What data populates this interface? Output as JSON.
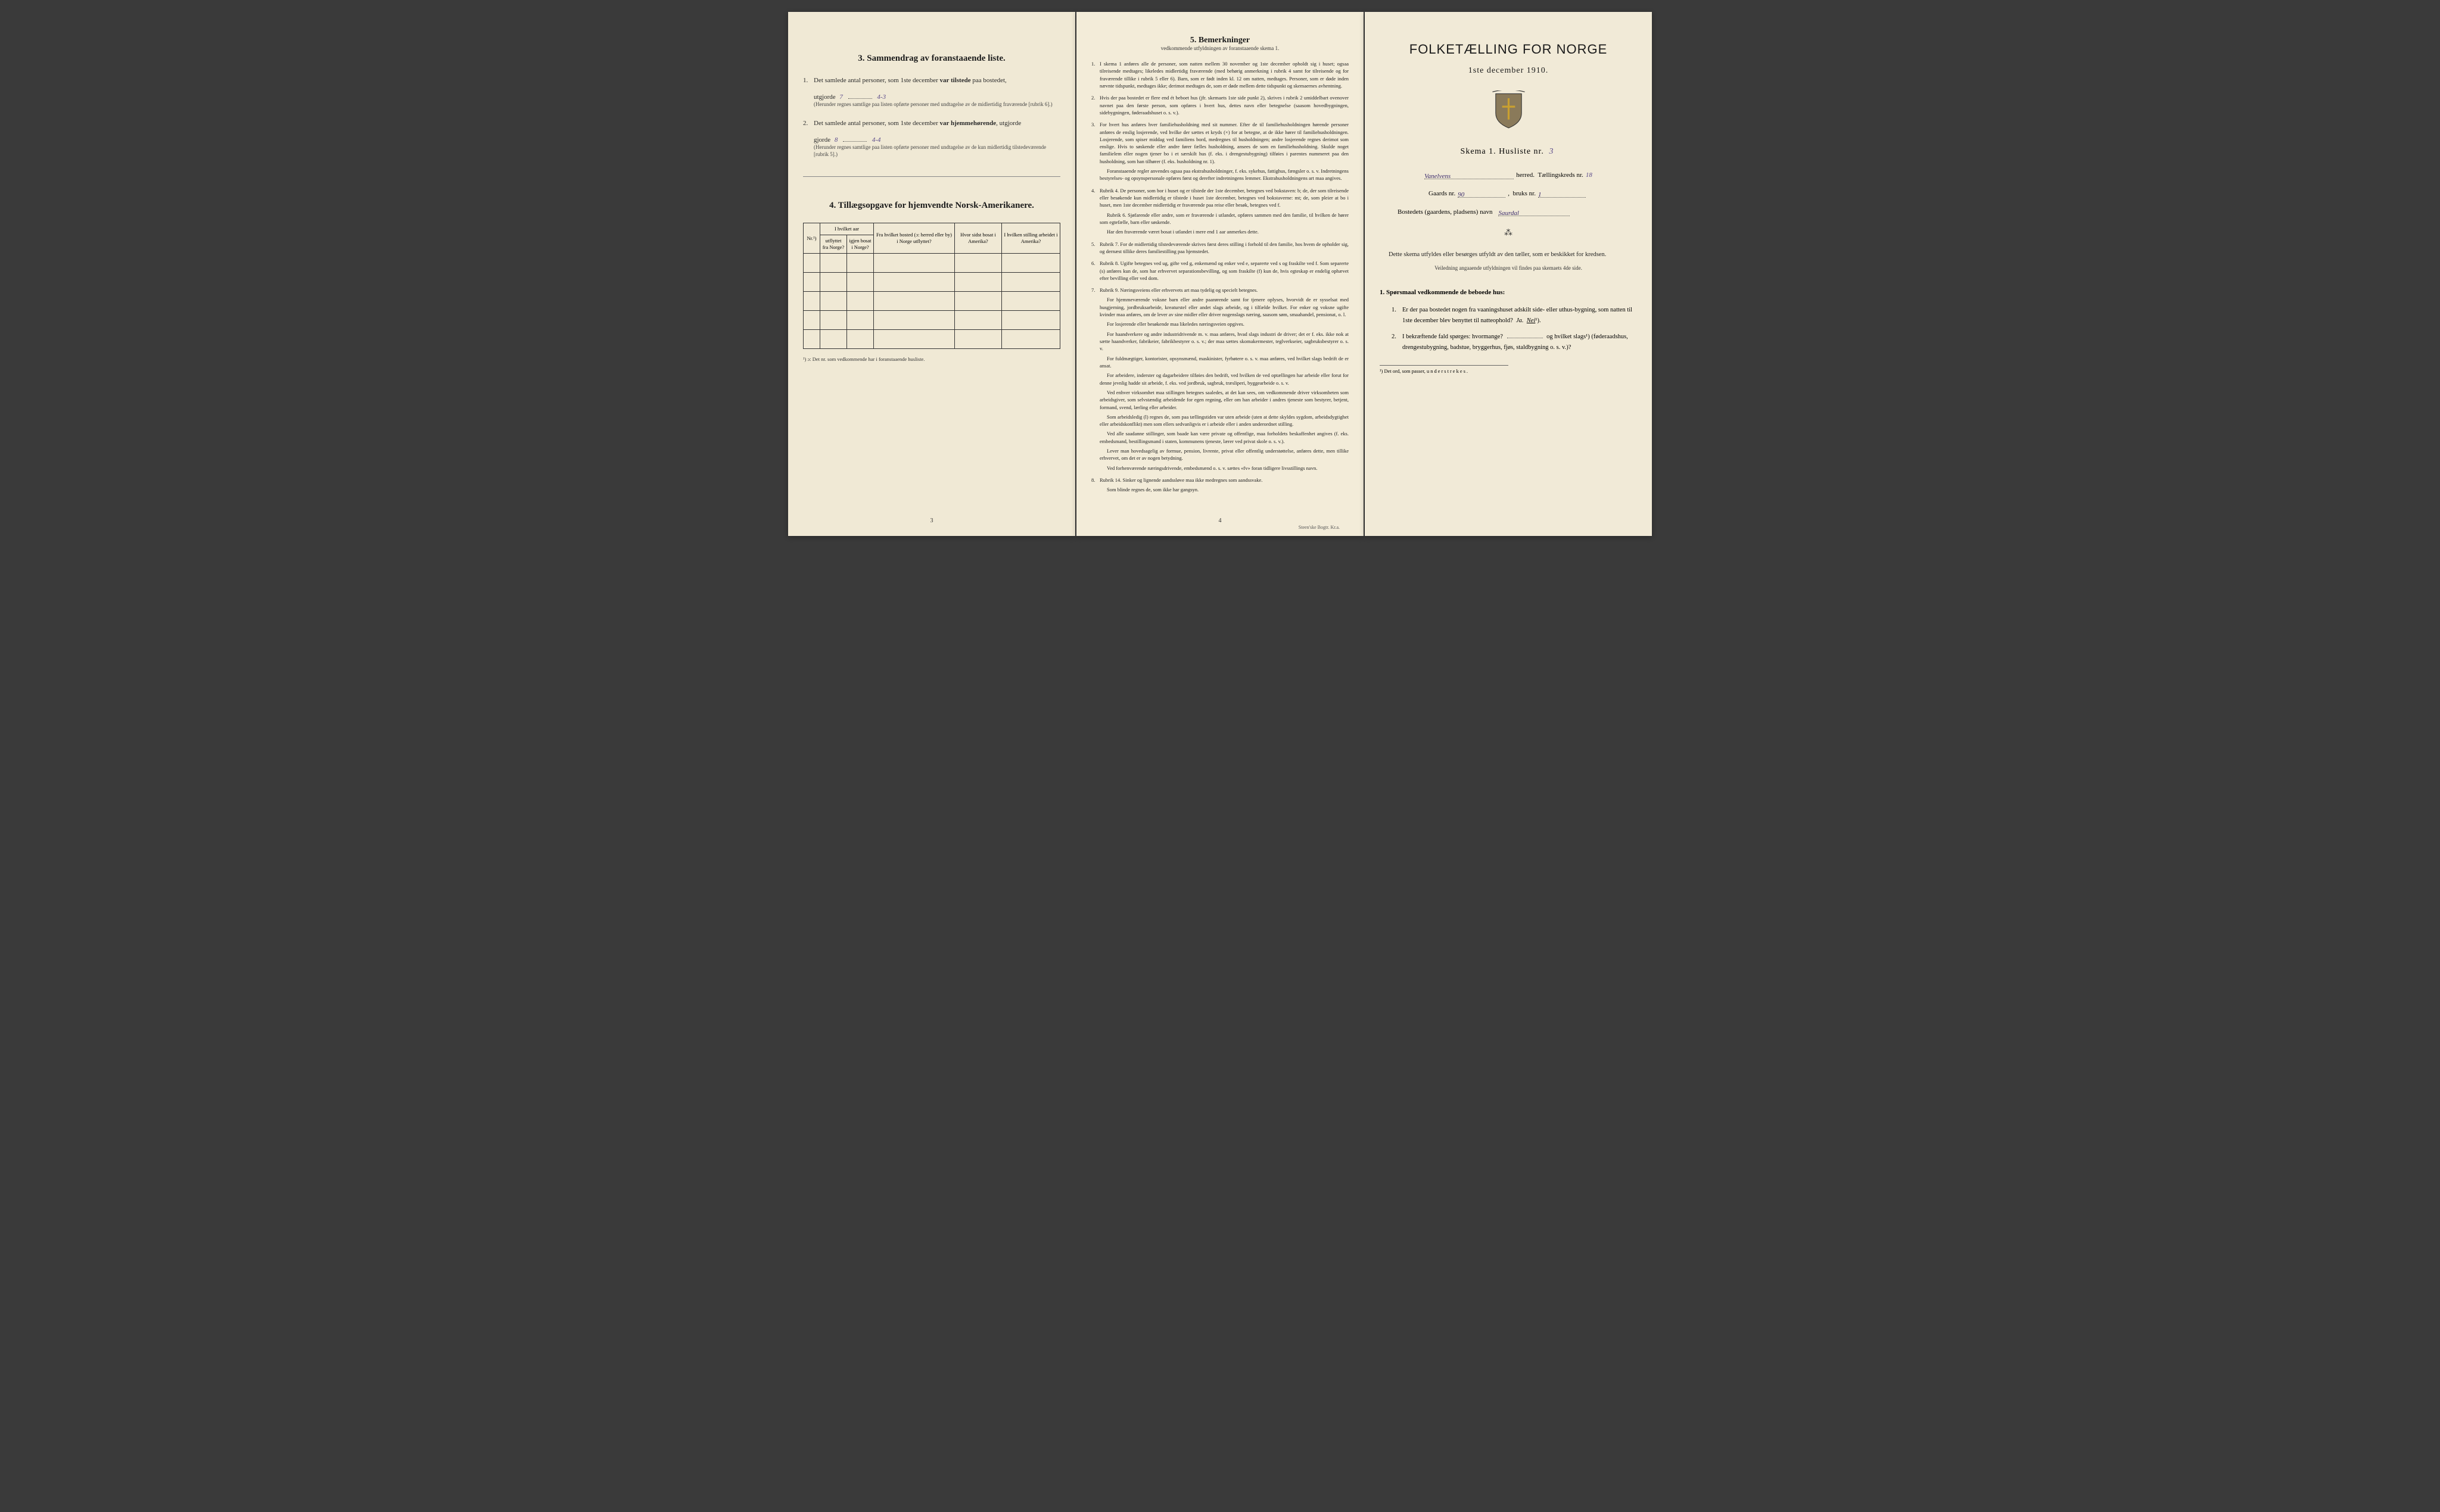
{
  "left_page": {
    "section3": {
      "title": "3. Sammendrag av foranstaaende liste.",
      "item1": {
        "num": "1.",
        "text_a": "Det samlede antal personer, som 1ste december ",
        "text_b": "var tilstede",
        "text_c": " paa bostedet,",
        "text_d": "utgjorde",
        "value": "7",
        "value2": "4-3",
        "note": "(Herunder regnes samtlige paa listen opførte personer med undtagelse av de midlertidig fraværende [rubrik 6].)"
      },
      "item2": {
        "num": "2.",
        "text_a": "Det samlede antal personer, som 1ste december ",
        "text_b": "var hjemmehørende",
        "text_c": ", utgjorde",
        "value": "8",
        "value2": "4-4",
        "note": "(Herunder regnes samtlige paa listen opførte personer med undtagelse av de kun midlertidig tilstedeværende [rubrik 5].)"
      }
    },
    "section4": {
      "title": "4. Tillægsopgave for hjemvendte Norsk-Amerikanere.",
      "headers": {
        "nr": "Nr.¹)",
        "col1": "I hvilket aar",
        "col1a": "utflyttet fra Norge?",
        "col1b": "igjen bosat i Norge?",
        "col2": "Fra hvilket bosted (ɔ: herred eller by) i Norge utflyttet?",
        "col3": "Hvor sidst bosat i Amerika?",
        "col4": "I hvilken stilling arbeidet i Amerika?"
      },
      "footnote": "¹) ɔ: Det nr. som vedkommende har i foranstaaende husliste."
    },
    "page_num": "3"
  },
  "middle_page": {
    "title": "5. Bemerkninger",
    "subtitle": "vedkommende utfyldningen av foranstaaende skema 1.",
    "items": [
      {
        "num": "1.",
        "text": "I skema 1 anføres alle de personer, som natten mellem 30 november og 1ste december opholdt sig i huset; ogsaa tilreisende medtages; likeledes midlertidig fraværende (med behørig anmerkning i rubrik 4 samt for tilreisende og for fraværende tillike i rubrik 5 eller 6). Barn, som er født inden kl. 12 om natten, medtages. Personer, som er døde inden nævnte tidspunkt, medtages ikke; derimot medtages de, som er døde mellem dette tidspunkt og skemaernes avhentning."
      },
      {
        "num": "2.",
        "text": "Hvis der paa bostedet er flere end ét beboet hus (jfr. skemaets 1ste side punkt 2), skrives i rubrik 2 umiddelbart ovenover navnet paa den første person, som opføres i hvert hus, dettes navn eller betegnelse (saasom hovedbygningen, sidebygningen, føderaadshuset o. s. v.)."
      },
      {
        "num": "3.",
        "text": "For hvert hus anføres hver familiehusholdning med sit nummer. Efter de til familiehusholdningen hørende personer anføres de enslig losjerende, ved hvilke der sættes et kryds (×) for at betegne, at de ikke hører til familiehusholdningen. Losjerende, som spiser middag ved familiens bord, medregnes til husholdningen; andre losjerende regnes derimot som enslige. Hvis to søskende eller andre fører fælles husholdning, ansees de som en familiehusholdning. Skulde noget familielem eller nogen tjener bo i et særskilt hus (f. eks. i drengestubygning) tilføies i parentes nummeret paa den husholdning, som han tilhører (f. eks. husholdning nr. 1).",
        "extra": "Foranstaaende regler anvendes ogsaa paa ekstrahusholdninger, f. eks. sykehus, fattighus, fængsler o. s. v. Indretningens bestyrelses- og opsynspersonale opføres først og derefter indretningens lemmer. Ekstrahusholdningens art maa angives."
      },
      {
        "num": "4.",
        "text": "Rubrik 4. De personer, som bor i huset og er tilstede der 1ste december, betegnes ved bokstaven: b; de, der som tilreisende eller besøkende kun midlertidig er tilstede i huset 1ste december, betegnes ved bokstaverne: mt; de, som pleier at bo i huset, men 1ste december midlertidig er fraværende paa reise eller besøk, betegnes ved f.",
        "extra": "Rubrik 6. Sjøfarende eller andre, som er fraværende i utlandet, opføres sammen med den familie, til hvilken de hører som egtefælle, barn eller søskende.",
        "extra2": "Har den fraværende været bosat i utlandet i mere end 1 aar anmerkes dette."
      },
      {
        "num": "5.",
        "text": "Rubrik 7. For de midlertidig tilstedeværende skrives først deres stilling i forhold til den familie, hos hvem de opholder sig, og dernæst tillike deres familiestilling paa hjemstedet."
      },
      {
        "num": "6.",
        "text": "Rubrik 8. Ugifte betegnes ved ug, gifte ved g, enkemænd og enker ved e, separerte ved s og fraskilte ved f. Som separerte (s) anføres kun de, som har erhvervet separationsbevilling, og som fraskilte (f) kun de, hvis egteskap er endelig ophævet efter bevilling eller ved dom."
      },
      {
        "num": "7.",
        "text": "Rubrik 9. Næringsveiens eller erhvervets art maa tydelig og specielt betegnes.",
        "extra": "For hjemmeværende voksne barn eller andre paarørende samt for tjenere oplyses, hvorvidt de er sysselsat med husgjerning, jordbruksarbeide, kreaturstel eller andet slags arbeide, og i tilfælde hvilket. For enker og voksne ugifte kvinder maa anføres, om de lever av sine midler eller driver nogenslags næring, saasom søm, smaahandel, pensionat, o. l.",
        "extra2": "For losjerende eller besøkende maa likeledes næringsveien opgives.",
        "extra3": "For haandverkere og andre industridrivende m. v. maa anføres, hvad slags industri de driver; det er f. eks. ikke nok at sætte haandverker, fabrikeier, fabrikbestyrer o. s. v.; der maa sættes skomakermester, teglverkseier, sagbruksbestyrer o. s. v.",
        "extra4": "For fuldmægtiger, kontorister, opsynsmænd, maskinister, fyrbøtere o. s. v. maa anføres, ved hvilket slags bedrift de er ansat.",
        "extra5": "For arbeidere, inderster og dagarbeidere tilføies den bedrift, ved hvilken de ved optællingen har arbeide eller forut for denne jevnlig hadde sit arbeide, f. eks. ved jordbruk, sagbruk, træsliperi, byggearbeide o. s. v.",
        "extra6": "Ved enhver virksomhet maa stillingen betegnes saaledes, at det kan sees, om vedkommende driver virksomheten som arbeidsgiver, som selvstændig arbeidende for egen regning, eller om han arbeider i andres tjeneste som bestyrer, betjent, formand, svend, lærling eller arbeider.",
        "extra7": "Som arbeidsledig (l) regnes de, som paa tællingstiden var uten arbeide (uten at dette skyldes sygdom, arbeidsdygtighet eller arbeidskonflikt) men som ellers sedvanligvis er i arbeide eller i anden underordnet stilling.",
        "extra8": "Ved alle saadanne stillinger, som baade kan være private og offentlige, maa forholdets beskaffenhet angives (f. eks. embedsmand, bestillingsmand i staten, kommunens tjeneste, lærer ved privat skole o. s. v.).",
        "extra9": "Lever man hovedsagelig av formue, pension, livrente, privat eller offentlig understøttelse, anføres dette, men tillike erhvervet, om det er av nogen betydning.",
        "extra10": "Ved forhenværende næringsdrivende, embedsmænd o. s. v. sættes «fv» foran tidligere livsstillings navn."
      },
      {
        "num": "8.",
        "text": "Rubrik 14. Sinker og lignende aandssløve maa ikke medregnes som aandssvake.",
        "extra": "Som blinde regnes de, som ikke har gangsyn."
      }
    ],
    "page_num": "4",
    "printer": "Steen'ske Bogtr. Kr.a."
  },
  "right_page": {
    "main_title": "FOLKETÆLLING FOR NORGE",
    "date": "1ste december 1910.",
    "skema_text": "Skema 1. Husliste nr.",
    "husliste_nr": "3",
    "herred_value": "Vanelvens",
    "herred_label": "herred.",
    "taellingskreds_label": "Tællingskreds nr.",
    "taellingskreds_nr": "18",
    "gaards_label": "Gaards nr.",
    "gaards_nr": "90",
    "bruks_label": "bruks nr.",
    "bruks_nr": "1",
    "bosted_label": "Bostedets (gaardens, pladsens) navn",
    "bosted_value": "Saurdal",
    "instruction": "Dette skema utfyldes eller besørges utfyldt av den tæller, som er beskikket for kredsen.",
    "instruction_sub": "Veiledning angaaende utfyldningen vil findes paa skemaets 4de side.",
    "q_section": "1. Spørsmaal vedkommende de beboede hus:",
    "q1": {
      "num": "1.",
      "text": "Er der paa bostedet nogen fra vaaningshuset adskilt side- eller uthus-bygning, som natten til 1ste december blev benyttet til natteophold? Ja. Nei¹)."
    },
    "q2": {
      "num": "2.",
      "text_a": "I bekræftende fald spørges: hvormange?",
      "text_b": "og hvilket slags¹) (føderaadshus, drengestubygning, badstue, bryggerhus, fjøs, staldbygning o. s. v.)?"
    },
    "footnote": "¹) Det ord, som passer, understrekes."
  }
}
